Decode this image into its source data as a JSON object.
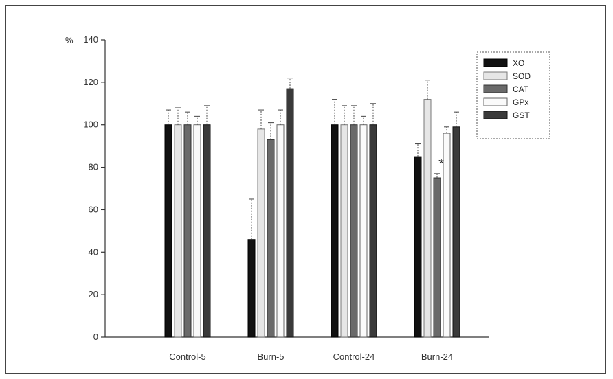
{
  "chart_data": {
    "type": "bar",
    "ylabel": "%",
    "ylim": [
      0,
      140
    ],
    "yticks": [
      "0",
      "20",
      "40",
      "60",
      "80",
      "100",
      "120",
      "140"
    ],
    "categories": [
      "Control-5",
      "Burn-5",
      "Control-24",
      "Burn-24"
    ],
    "series": [
      {
        "name": "XO",
        "values": [
          100,
          46,
          100,
          85
        ],
        "errors": [
          7,
          19,
          12,
          6
        ],
        "fill": "#111111",
        "stroke": "#000000"
      },
      {
        "name": "SOD",
        "values": [
          100,
          98,
          100,
          112
        ],
        "errors": [
          8,
          9,
          9,
          9
        ],
        "fill": "#e6e6e6",
        "stroke": "#777777"
      },
      {
        "name": "CAT",
        "values": [
          100,
          93,
          100,
          75
        ],
        "errors": [
          6,
          8,
          9,
          2
        ],
        "fill": "#6a6a6a",
        "stroke": "#333333"
      },
      {
        "name": "GPx",
        "values": [
          100,
          100,
          100,
          96
        ],
        "errors": [
          4,
          7,
          4,
          3
        ],
        "fill": "#fafafa",
        "stroke": "#666666"
      },
      {
        "name": "GST",
        "values": [
          100,
          117,
          100,
          99
        ],
        "errors": [
          9,
          5,
          10,
          7
        ],
        "fill": "#3a3a3a",
        "stroke": "#111111"
      }
    ],
    "annotations": [
      {
        "text": "*",
        "category": "Burn-24",
        "series": "CAT"
      }
    ],
    "legend_position": "top-right",
    "grid": false
  }
}
